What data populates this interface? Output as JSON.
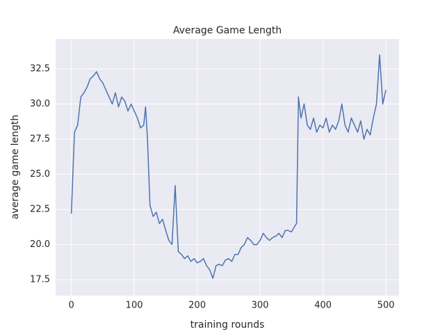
{
  "chart_data": {
    "type": "line",
    "title": "Average Game Length",
    "xlabel": "training rounds",
    "ylabel": "average game length",
    "x": [
      0,
      5,
      10,
      15,
      20,
      25,
      30,
      35,
      40,
      45,
      50,
      55,
      60,
      65,
      70,
      75,
      80,
      85,
      90,
      95,
      100,
      105,
      110,
      115,
      118,
      121,
      125,
      130,
      135,
      140,
      145,
      150,
      155,
      160,
      165,
      170,
      175,
      180,
      185,
      190,
      195,
      200,
      205,
      210,
      215,
      220,
      225,
      230,
      235,
      240,
      245,
      250,
      255,
      260,
      265,
      270,
      275,
      280,
      285,
      290,
      295,
      300,
      305,
      310,
      315,
      320,
      325,
      330,
      335,
      340,
      345,
      350,
      355,
      358,
      361,
      365,
      370,
      375,
      380,
      385,
      390,
      395,
      400,
      405,
      410,
      415,
      420,
      425,
      430,
      435,
      440,
      445,
      450,
      455,
      460,
      465,
      470,
      475,
      480,
      485,
      490,
      495,
      500
    ],
    "series": [
      {
        "name": "average game length",
        "color": "#4c72b0",
        "values": [
          22.2,
          28.0,
          28.5,
          30.5,
          30.8,
          31.2,
          31.8,
          32.0,
          32.3,
          31.8,
          31.5,
          31.0,
          30.5,
          30.0,
          30.8,
          29.8,
          30.5,
          30.2,
          29.5,
          30.0,
          29.5,
          29.0,
          28.3,
          28.5,
          29.8,
          27.5,
          22.8,
          22.0,
          22.3,
          21.5,
          21.8,
          21.0,
          20.3,
          20.0,
          24.2,
          19.5,
          19.3,
          19.0,
          19.2,
          18.8,
          19.0,
          18.7,
          18.8,
          19.0,
          18.5,
          18.2,
          17.6,
          18.5,
          18.6,
          18.5,
          18.9,
          19.0,
          18.8,
          19.3,
          19.3,
          19.8,
          20.0,
          20.5,
          20.3,
          20.0,
          20.0,
          20.3,
          20.8,
          20.5,
          20.3,
          20.5,
          20.6,
          20.8,
          20.5,
          21.0,
          21.0,
          20.9,
          21.3,
          21.5,
          30.5,
          29.0,
          30.0,
          28.5,
          28.2,
          29.0,
          28.0,
          28.5,
          28.3,
          29.0,
          28.0,
          28.5,
          28.2,
          28.8,
          30.0,
          28.5,
          28.0,
          29.0,
          28.5,
          28.0,
          28.8,
          27.5,
          28.2,
          27.8,
          29.0,
          30.0,
          33.5,
          30.0,
          31.0
        ]
      }
    ],
    "xlim": [
      -25,
      521
    ],
    "ylim": [
      16.36,
      34.63
    ],
    "xticks": [
      0,
      100,
      200,
      300,
      400,
      500
    ],
    "yticks": [
      17.5,
      {
        "value": 20,
        "label": "20.0"
      },
      22.5,
      {
        "value": 25,
        "label": "25.0"
      },
      27.5,
      {
        "value": 30,
        "label": "30.0"
      },
      32.5
    ],
    "grid": true
  }
}
